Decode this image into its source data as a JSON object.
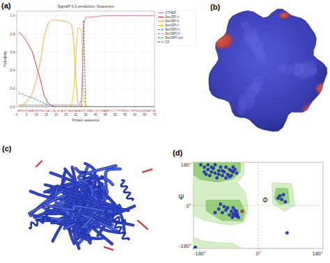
{
  "panels": {
    "a": "(a)",
    "b": "(b)",
    "c": "(c)",
    "d": "(d)"
  },
  "chart_data": [
    {
      "type": "line",
      "title": "SignalP 6.0 prediction: Sequence",
      "x_label": "Protein sequence",
      "y_label": "Probability",
      "sequence": "MFKPVVAAVSRFSLCALLALGLAGTTAQSAGASPLSEATTGTKWAMPCCTTPPEEGLTNPSDGGHRAFYA",
      "x": [
        1,
        3,
        5,
        8,
        10,
        12,
        14,
        16,
        18,
        20,
        22,
        24,
        26,
        28,
        29,
        30,
        31,
        32,
        33,
        34,
        35,
        40,
        45,
        50,
        55,
        60,
        65,
        70
      ],
      "series": [
        {
          "name": "OTHER",
          "color": "#e0709a",
          "line_style": "solid",
          "values": [
            0.02,
            0.02,
            0.02,
            0.02,
            0.02,
            0.02,
            0.02,
            0.02,
            0.02,
            0.02,
            0.02,
            0.02,
            0.02,
            0.02,
            0.02,
            0.02,
            0.02,
            0.02,
            0.1,
            0.9,
            0.98,
            0.99,
            1,
            1,
            1,
            1,
            1,
            1
          ]
        },
        {
          "name": "Sec/SPI n",
          "color": "#d62728",
          "line_style": "solid",
          "values": [
            0.82,
            0.78,
            0.72,
            0.6,
            0.45,
            0.3,
            0.12,
            0.04,
            0.01,
            0,
            0,
            0,
            0,
            0,
            0,
            0,
            0,
            0,
            0,
            0,
            0,
            0,
            0,
            0,
            0,
            0,
            0,
            0
          ]
        },
        {
          "name": "Sec/SPI h",
          "color": "#ff9f2e",
          "line_style": "solid",
          "values": [
            0,
            0.02,
            0.05,
            0.15,
            0.3,
            0.5,
            0.78,
            0.92,
            0.95,
            0.95,
            0.95,
            0.94,
            0.93,
            0.9,
            0.7,
            0.3,
            0.06,
            0.02,
            0.01,
            0,
            0,
            0,
            0,
            0,
            0,
            0,
            0,
            0
          ]
        },
        {
          "name": "Sec/SPI c",
          "color": "#f0c419",
          "line_style": "solid",
          "values": [
            0,
            0,
            0,
            0,
            0,
            0,
            0,
            0,
            0,
            0,
            0,
            0,
            0,
            0.02,
            0.2,
            0.55,
            0.86,
            0.87,
            0.82,
            0.08,
            0.01,
            0,
            0,
            0,
            0,
            0,
            0,
            0
          ]
        },
        {
          "name": "Sec/SPII n",
          "color": "#1f77b4",
          "line_style": "dashed",
          "values": [
            0.15,
            0.14,
            0.12,
            0.1,
            0.08,
            0.06,
            0.04,
            0.02,
            0.01,
            0,
            0,
            0,
            0,
            0,
            0,
            0,
            0,
            0,
            0,
            0,
            0,
            0,
            0,
            0,
            0,
            0,
            0,
            0
          ]
        },
        {
          "name": "Sec/SPII h",
          "color": "#9467bd",
          "line_style": "dashed",
          "values": [
            0,
            0,
            0,
            0,
            0,
            0,
            0,
            0,
            0,
            0,
            0,
            0,
            0,
            0,
            0,
            0,
            0,
            0,
            0,
            0,
            0,
            0,
            0,
            0,
            0,
            0,
            0,
            0
          ]
        },
        {
          "name": "Sec/SPII cys",
          "color": "#2ca02c",
          "line_style": "dashed",
          "values": [
            0,
            0,
            0,
            0,
            0,
            0,
            0,
            0,
            0,
            0,
            0,
            0,
            0,
            0,
            0,
            0,
            0,
            0,
            0,
            0,
            0,
            0,
            0,
            0,
            0,
            0,
            0,
            0
          ]
        },
        {
          "name": "CS",
          "color": "#555555",
          "line_style": "dashed",
          "values": [
            0,
            0,
            0,
            0,
            0,
            0,
            0,
            0,
            0,
            0,
            0,
            0,
            0,
            0,
            0,
            0,
            0,
            0,
            0,
            0.95,
            0,
            0,
            0,
            0,
            0,
            0,
            0,
            0
          ]
        }
      ],
      "xlim": [
        0,
        70
      ],
      "xticks": [
        0,
        5,
        10,
        15,
        20,
        25,
        30,
        35,
        40,
        45,
        50,
        55,
        60,
        65,
        70
      ],
      "ylim": [
        0,
        1.05
      ],
      "yticks": [
        {
          "value": 0,
          "label": "0.0"
        },
        {
          "value": 0.2,
          "label": "0.2"
        },
        {
          "value": 0.4,
          "label": "0.4"
        },
        {
          "value": 0.6,
          "label": "0.6"
        },
        {
          "value": 0.8,
          "label": "0.8"
        },
        {
          "value": 1,
          "label": "1.0"
        }
      ],
      "grid": true,
      "legend": "right"
    },
    {
      "type": "scatter",
      "x_label": "Φ",
      "y_label": "Ψ",
      "marker": "circle",
      "xlim": [
        -180,
        180
      ],
      "xticks": [
        {
          "value": -180,
          "label": "-180°"
        },
        {
          "value": 0,
          "label": "0°"
        },
        {
          "value": 180,
          "label": "180°"
        }
      ],
      "ylim": [
        -180,
        180
      ],
      "yticks": [
        {
          "value": -180,
          "label": "-180°"
        },
        {
          "value": 0,
          "label": "0°"
        },
        {
          "value": 180,
          "label": "180°"
        }
      ],
      "grid": true,
      "series": [
        {
          "color": "#2d3fb8",
          "x": [
            -150,
            -140,
            -130,
            -120,
            -125,
            -110,
            -100,
            -95,
            -85,
            -80,
            -75,
            -70,
            -65,
            -140,
            -160,
            -115,
            -105,
            -90,
            -135,
            -150,
            -120,
            -70,
            -60,
            -80,
            -100,
            -130,
            -145,
            -110,
            -90,
            -75,
            -65,
            -60,
            -70,
            -62,
            -68,
            -58,
            -75,
            -80,
            -55,
            -90,
            -85,
            -95,
            -100,
            -65,
            -72,
            -60,
            -120,
            -110,
            -105,
            -70,
            60,
            55,
            65,
            70,
            75,
            -175,
            80
          ],
          "values": [
            160,
            150,
            140,
            135,
            155,
            130,
            125,
            140,
            130,
            150,
            145,
            140,
            150,
            170,
            170,
            115,
            160,
            115,
            125,
            140,
            170,
            160,
            135,
            120,
            145,
            160,
            130,
            145,
            160,
            125,
            -40,
            -45,
            -35,
            -30,
            -42,
            -38,
            -25,
            -40,
            -50,
            -20,
            -10,
            -5,
            -30,
            -20,
            -50,
            -25,
            -30,
            -15,
            5,
            -10,
            40,
            30,
            25,
            45,
            15,
            -175,
            -115
          ]
        },
        {
          "color": "#e53030",
          "x": [
            -45
          ],
          "values": [
            -25
          ]
        }
      ]
    }
  ]
}
